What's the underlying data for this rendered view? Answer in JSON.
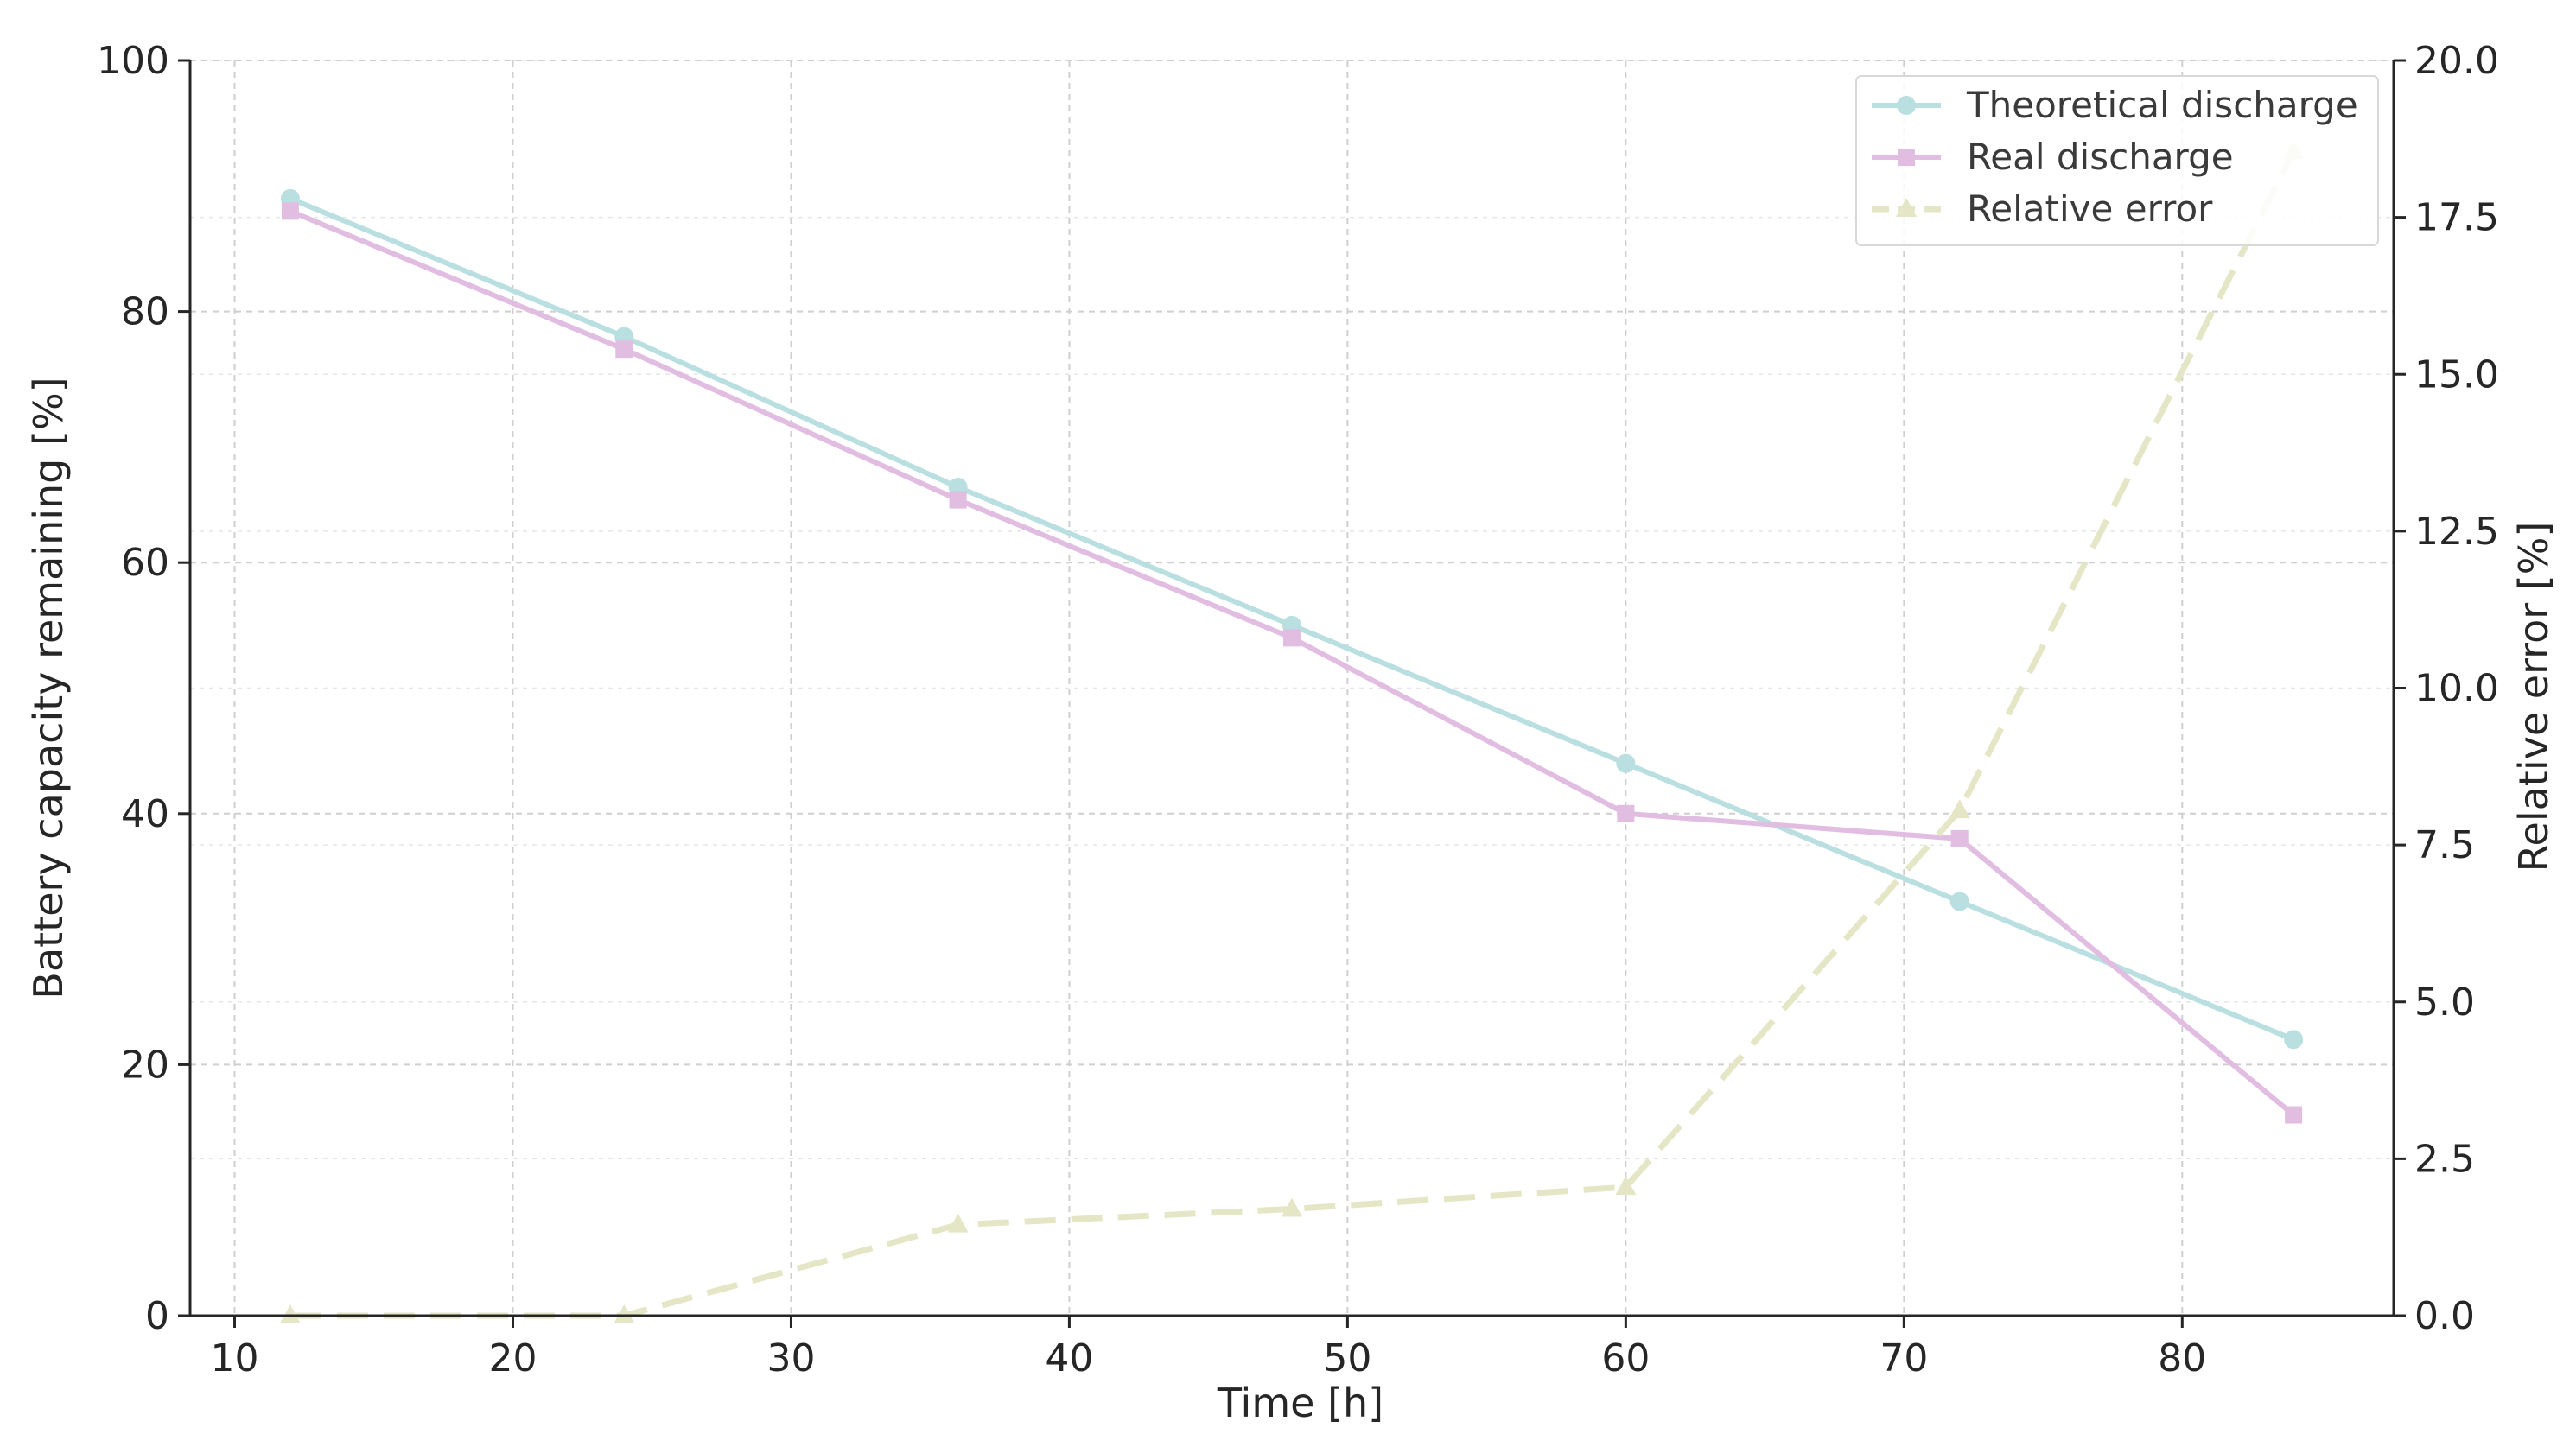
{
  "chart_data": {
    "type": "line",
    "title": "",
    "xlabel": "Time [h]",
    "ylabel": "Battery capacity remaining [%]",
    "y2label": "Relative error [%]",
    "xlim": [
      8.4,
      87.6
    ],
    "ylim": [
      0,
      100
    ],
    "y2lim": [
      0,
      20
    ],
    "x_ticks": [
      "10",
      "20",
      "30",
      "40",
      "50",
      "60",
      "70",
      "80"
    ],
    "y_ticks": [
      "0",
      "20",
      "40",
      "60",
      "80",
      "100"
    ],
    "y2_ticks": [
      "0.0",
      "2.5",
      "5.0",
      "7.5",
      "10.0",
      "12.5",
      "15.0",
      "17.5",
      "20.0"
    ],
    "grid": true,
    "legend_position": "top-right",
    "x": [
      12,
      24,
      36,
      48,
      60,
      72,
      84
    ],
    "series": [
      {
        "name": "Theoretical discharge",
        "axis": "left",
        "values": [
          89,
          78,
          66,
          55,
          44,
          33,
          22
        ],
        "color": "#b9dfe0",
        "marker": "circle",
        "line": "solid"
      },
      {
        "name": "Real discharge",
        "axis": "left",
        "values": [
          88,
          77,
          65,
          54,
          40,
          38,
          16
        ],
        "color": "#e2bde2",
        "marker": "square",
        "line": "solid"
      },
      {
        "name": "Relative error",
        "axis": "right",
        "values": [
          0.0,
          0.0,
          1.45,
          1.7,
          2.05,
          8.05,
          18.55
        ],
        "color": "#e4e6c6",
        "marker": "triangle",
        "line": "dashed"
      }
    ]
  }
}
